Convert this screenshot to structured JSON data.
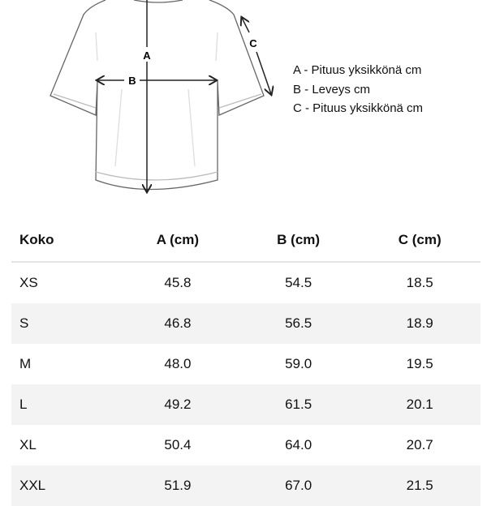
{
  "diagram": {
    "labels": {
      "a": "A",
      "b": "B",
      "c": "C"
    }
  },
  "legend": [
    "A - Pituus yksikkönä cm",
    "B - Leveys cm",
    "C - Pituus yksikkönä cm"
  ],
  "table": {
    "headers": [
      "Koko",
      "A (cm)",
      "B (cm)",
      "C (cm)"
    ],
    "rows": [
      [
        "XS",
        "45.8",
        "54.5",
        "18.5"
      ],
      [
        "S",
        "46.8",
        "56.5",
        "18.9"
      ],
      [
        "M",
        "48.0",
        "59.0",
        "19.5"
      ],
      [
        "L",
        "49.2",
        "61.5",
        "20.1"
      ],
      [
        "XL",
        "50.4",
        "64.0",
        "20.7"
      ],
      [
        "XXL",
        "51.9",
        "67.0",
        "21.5"
      ]
    ],
    "stripe_color": "#f3f3f3"
  }
}
